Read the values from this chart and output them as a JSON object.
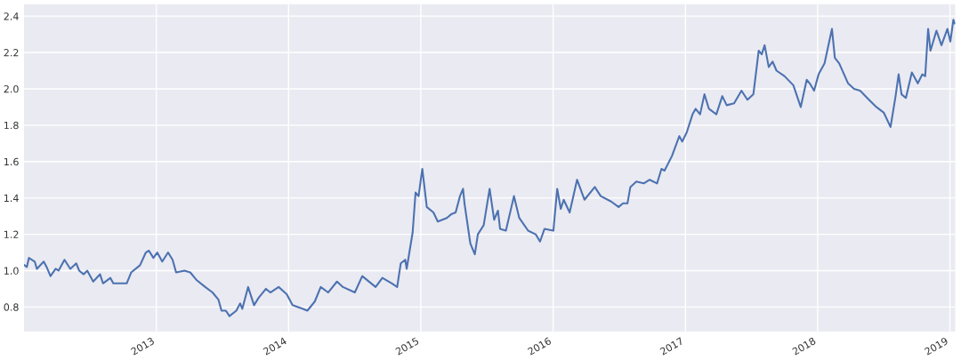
{
  "chart_data": {
    "type": "line",
    "grid": true,
    "xlim": [
      2012.0,
      2019.04
    ],
    "ylim": [
      0.665,
      2.465
    ],
    "xticks": [
      2013,
      2014,
      2015,
      2016,
      2017,
      2018,
      2019
    ],
    "yticks": [
      {
        "value": 0.8,
        "label": "0.8"
      },
      {
        "value": 1.0,
        "label": "1.0"
      },
      {
        "value": 1.2,
        "label": "1.2"
      },
      {
        "value": 1.4,
        "label": "1.4"
      },
      {
        "value": 1.6,
        "label": "1.6"
      },
      {
        "value": 1.8,
        "label": "1.8"
      },
      {
        "value": 2.0,
        "label": "2.0"
      },
      {
        "value": 2.2,
        "label": "2.2"
      },
      {
        "value": 2.4,
        "label": "2.4"
      }
    ],
    "series": [
      {
        "color": "#4c72b0",
        "x": [
          2012.003,
          2012.021,
          2012.037,
          2012.081,
          2012.097,
          2012.149,
          2012.171,
          2012.2,
          2012.239,
          2012.261,
          2012.306,
          2012.35,
          2012.395,
          2012.417,
          2012.451,
          2012.478,
          2012.523,
          2012.575,
          2012.597,
          2012.653,
          2012.675,
          2012.72,
          2012.776,
          2012.81,
          2012.877,
          2012.921,
          2012.944,
          2012.978,
          2013.007,
          2013.045,
          2013.089,
          2013.123,
          2013.15,
          2013.213,
          2013.257,
          2013.302,
          2013.37,
          2013.425,
          2013.47,
          2013.493,
          2013.526,
          2013.553,
          2013.605,
          2013.634,
          2013.65,
          2013.694,
          2013.739,
          2013.773,
          2013.829,
          2013.862,
          2013.925,
          2013.986,
          2014.03,
          2014.109,
          2014.142,
          2014.198,
          2014.243,
          2014.299,
          2014.366,
          2014.411,
          2014.501,
          2014.557,
          2014.658,
          2014.709,
          2014.781,
          2014.821,
          2014.848,
          2014.882,
          2014.893,
          2014.938,
          2014.96,
          2014.983,
          2015.011,
          2015.045,
          2015.095,
          2015.128,
          2015.196,
          2015.229,
          2015.263,
          2015.296,
          2015.319,
          2015.33,
          2015.374,
          2015.408,
          2015.431,
          2015.475,
          2015.52,
          2015.554,
          2015.583,
          2015.599,
          2015.643,
          2015.704,
          2015.744,
          2015.811,
          2015.868,
          2015.901,
          2015.935,
          2016.002,
          2016.031,
          2016.058,
          2016.08,
          2016.125,
          2016.181,
          2016.237,
          2016.315,
          2016.36,
          2016.439,
          2016.495,
          2016.528,
          2016.562,
          2016.584,
          2016.629,
          2016.685,
          2016.73,
          2016.786,
          2016.819,
          2016.842,
          2016.898,
          2016.954,
          2016.976,
          2017.01,
          2017.054,
          2017.077,
          2017.111,
          2017.144,
          2017.178,
          2017.234,
          2017.279,
          2017.312,
          2017.368,
          2017.424,
          2017.469,
          2017.514,
          2017.554,
          2017.577,
          2017.599,
          2017.63,
          2017.659,
          2017.689,
          2017.749,
          2017.816,
          2017.872,
          2017.917,
          2017.94,
          2017.973,
          2018.007,
          2018.052,
          2018.108,
          2018.13,
          2018.163,
          2018.23,
          2018.275,
          2018.321,
          2018.388,
          2018.444,
          2018.499,
          2018.551,
          2018.589,
          2018.612,
          2018.634,
          2018.667,
          2018.712,
          2018.757,
          2018.791,
          2018.813,
          2018.835,
          2018.853,
          2018.898,
          2018.936,
          2018.981,
          2019.003,
          2019.026,
          2019.037
        ],
        "values": [
          1.03,
          1.02,
          1.07,
          1.05,
          1.01,
          1.05,
          1.02,
          0.97,
          1.01,
          1.0,
          1.06,
          1.01,
          1.04,
          1.0,
          0.98,
          1.0,
          0.94,
          0.98,
          0.93,
          0.96,
          0.93,
          0.93,
          0.93,
          0.99,
          1.03,
          1.1,
          1.11,
          1.07,
          1.1,
          1.05,
          1.1,
          1.06,
          0.99,
          1.0,
          0.99,
          0.95,
          0.91,
          0.88,
          0.84,
          0.78,
          0.78,
          0.75,
          0.78,
          0.82,
          0.79,
          0.91,
          0.81,
          0.85,
          0.9,
          0.88,
          0.91,
          0.87,
          0.81,
          0.79,
          0.78,
          0.83,
          0.91,
          0.88,
          0.94,
          0.91,
          0.88,
          0.97,
          0.91,
          0.96,
          0.93,
          0.91,
          1.04,
          1.06,
          1.01,
          1.21,
          1.43,
          1.41,
          1.56,
          1.35,
          1.32,
          1.27,
          1.29,
          1.31,
          1.32,
          1.41,
          1.45,
          1.37,
          1.15,
          1.09,
          1.2,
          1.25,
          1.45,
          1.28,
          1.33,
          1.23,
          1.22,
          1.41,
          1.29,
          1.22,
          1.2,
          1.16,
          1.23,
          1.22,
          1.45,
          1.34,
          1.39,
          1.32,
          1.5,
          1.39,
          1.46,
          1.41,
          1.38,
          1.35,
          1.37,
          1.37,
          1.46,
          1.49,
          1.48,
          1.5,
          1.48,
          1.56,
          1.55,
          1.63,
          1.74,
          1.71,
          1.76,
          1.86,
          1.89,
          1.86,
          1.97,
          1.89,
          1.86,
          1.96,
          1.91,
          1.92,
          1.99,
          1.94,
          1.97,
          2.21,
          2.19,
          2.24,
          2.12,
          2.15,
          2.1,
          2.07,
          2.02,
          1.9,
          2.05,
          2.03,
          1.99,
          2.08,
          2.14,
          2.33,
          2.17,
          2.14,
          2.03,
          2.0,
          1.99,
          1.94,
          1.9,
          1.87,
          1.79,
          1.96,
          2.08,
          1.97,
          1.95,
          2.09,
          2.03,
          2.08,
          2.07,
          2.33,
          2.21,
          2.32,
          2.24,
          2.33,
          2.26,
          2.38,
          2.36
        ]
      }
    ]
  }
}
